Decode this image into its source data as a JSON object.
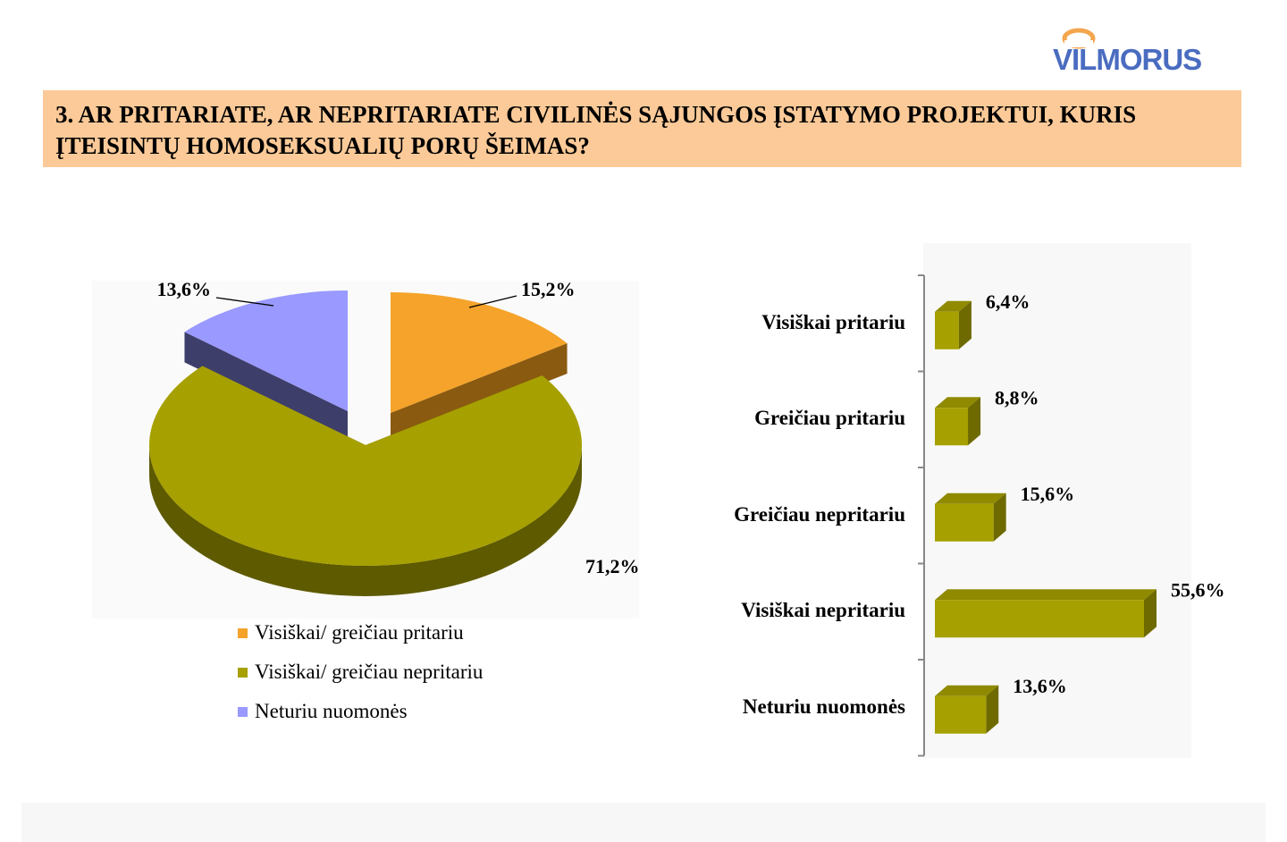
{
  "logo": {
    "text": "VILMORUS",
    "color": "#4a6cc0",
    "accent": "#f3a64e"
  },
  "title": "3. AR PRITARIATE, AR NEPRITARIATE CIVILINĖS SĄJUNGOS ĮSTATYMO PROJEKTUI, KURIS ĮTEISINTŲ HOMOSEKSUALIŲ PORŲ ŠEIMAS?",
  "title_band_color": "#fcca98",
  "chart_data": [
    {
      "type": "pie",
      "style": "3d-exploded",
      "slices": [
        {
          "name": "Visiškai/ greičiau pritariu",
          "value": 15.2,
          "label": "15,2%",
          "color": "#f5a32a",
          "side_color": "#8a5a10"
        },
        {
          "name": "Visiškai/ greičiau nepritariu",
          "value": 71.2,
          "label": "71,2%",
          "color": "#a6a000",
          "side_color": "#5e5a00"
        },
        {
          "name": "Neturiu nuomonės",
          "value": 13.6,
          "label": "13,6%",
          "color": "#9999ff",
          "side_color": "#3e3e6a"
        }
      ],
      "legend_position": "bottom"
    },
    {
      "type": "bar",
      "orientation": "horizontal",
      "style": "3d",
      "categories": [
        "Visiškai pritariu",
        "Greičiau pritariu",
        "Greičiau nepritariu",
        "Visiškai nepritariu",
        "Neturiu nuomonės"
      ],
      "values": [
        6.4,
        8.8,
        15.6,
        55.6,
        13.6
      ],
      "value_labels": [
        "6,4%",
        "8,8%",
        "15,6%",
        "55,6%",
        "13,6%"
      ],
      "xlim": [
        0,
        55.6
      ],
      "color": "#a6a000",
      "top_color": "#8f8a00",
      "side_color": "#6e6a00",
      "grid": false
    }
  ]
}
